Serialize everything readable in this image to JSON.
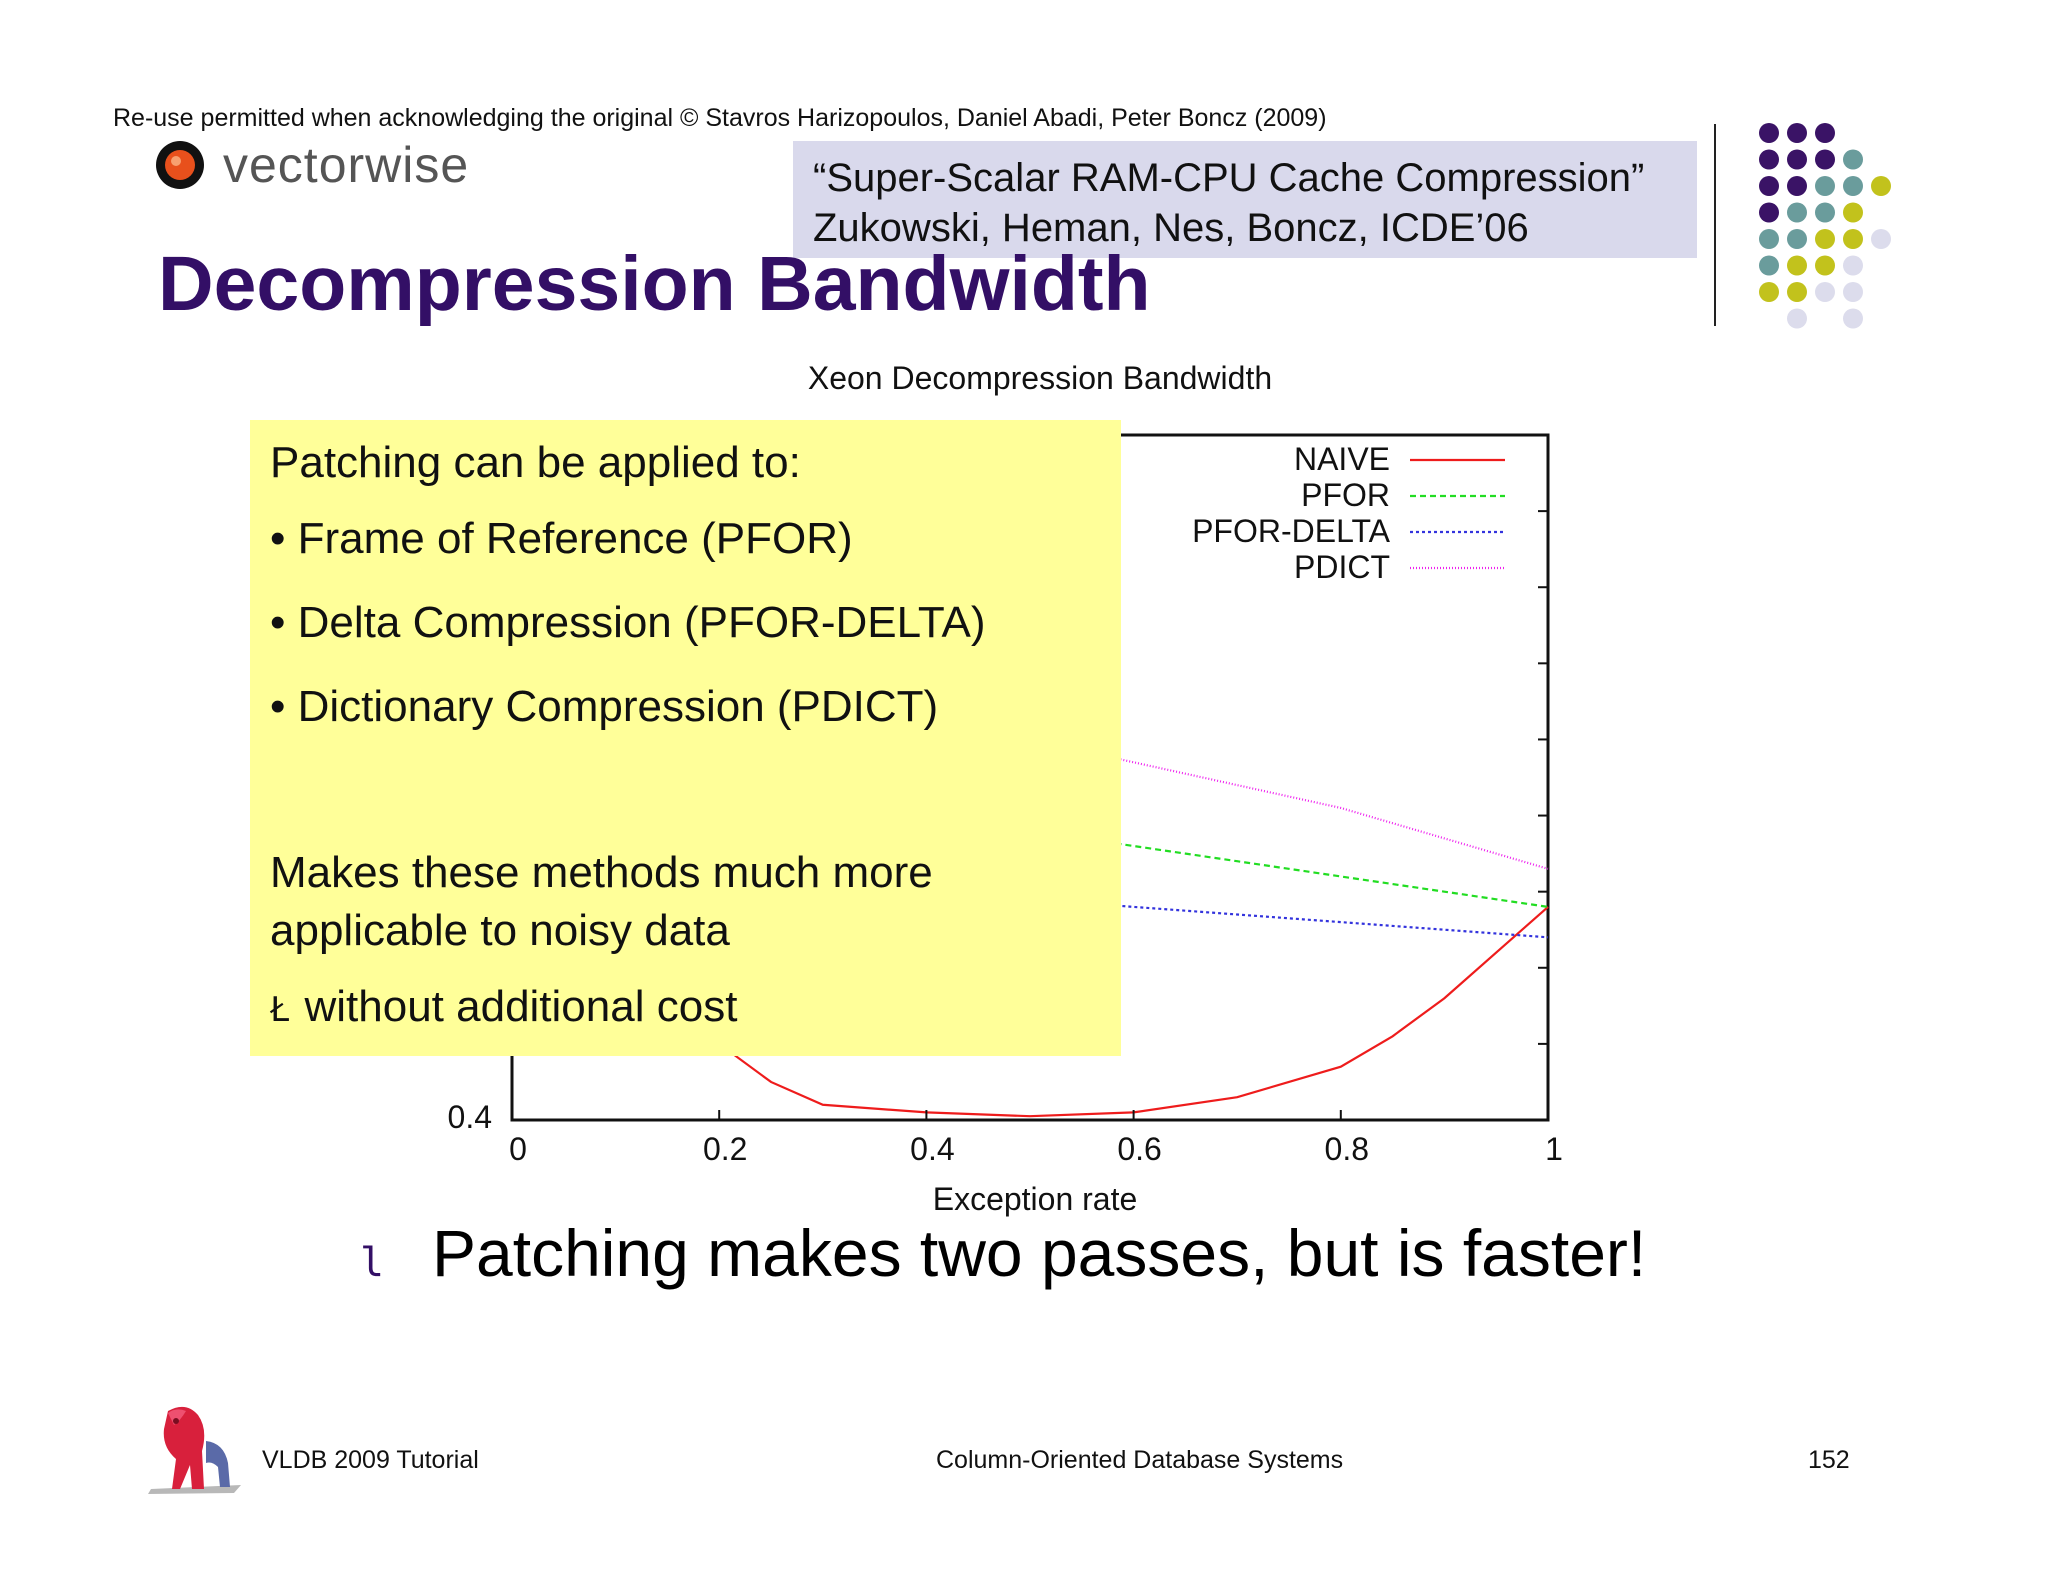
{
  "credit": "Re-use permitted when acknowledging the original © Stavros Harizopoulos, Daniel Abadi, Peter Boncz (2009)",
  "logo": {
    "text": "vectorwise",
    "icon": "vectorwise-logo-icon"
  },
  "reference": {
    "line1": "“Super-Scalar RAM-CPU Cache Compression”",
    "line2": "Zukowski, Heman, Nes, Boncz, ICDE’06"
  },
  "slide_title": "Decompression Bandwidth",
  "callout": {
    "heading": "Patching can be applied to:",
    "bullets": [
      "• Frame of Reference (PFOR)",
      "• Delta Compression (PFOR-DELTA)",
      "• Dictionary Compression (PDICT)"
    ],
    "note_line1": "Makes these methods much more",
    "note_line2": "applicable to noisy data",
    "cost_mark": "Ł",
    "cost_text": "without additional cost"
  },
  "main_bullet": {
    "mark": "l",
    "text": "Patching makes two passes, but is faster!"
  },
  "footer": {
    "left": "VLDB 2009 Tutorial",
    "center": "Column-Oriented Database Systems",
    "page": "152"
  },
  "chart_data": {
    "type": "line",
    "title": "Xeon Decompression Bandwidth",
    "xlabel": "Exception rate",
    "ylabel": "",
    "xlim": [
      0,
      1
    ],
    "ylim": [
      0.4,
      1.3
    ],
    "x_ticks": [
      "0",
      "0.2",
      "0.4",
      "0.6",
      "0.8",
      "1"
    ],
    "y_tick_labels": [
      "0.4"
    ],
    "grid": false,
    "legend_position": "top-right",
    "x": [
      0,
      0.1,
      0.2,
      0.25,
      0.3,
      0.4,
      0.5,
      0.6,
      0.7,
      0.8,
      0.85,
      0.9,
      0.95,
      1.0
    ],
    "series": [
      {
        "name": "NAIVE",
        "color": "#ee1c1c",
        "dash": "solid",
        "values": [
          1.3,
          1.0,
          0.5,
          0.45,
          0.42,
          0.41,
          0.405,
          0.41,
          0.43,
          0.47,
          0.51,
          0.56,
          0.62,
          0.68
        ]
      },
      {
        "name": "PFOR",
        "color": "#22dd22",
        "dash": "6,4",
        "values": [
          0.88,
          0.86,
          0.84,
          0.83,
          0.82,
          0.8,
          0.78,
          0.76,
          0.74,
          0.72,
          0.71,
          0.7,
          0.69,
          0.68
        ]
      },
      {
        "name": "PFOR-DELTA",
        "color": "#3333dd",
        "dash": "3,3",
        "values": [
          0.74,
          0.73,
          0.72,
          0.715,
          0.71,
          0.7,
          0.69,
          0.68,
          0.67,
          0.66,
          0.655,
          0.65,
          0.645,
          0.64
        ]
      },
      {
        "name": "PDICT",
        "color": "#ee22ee",
        "dash": "1,2",
        "values": [
          0.98,
          0.97,
          0.96,
          0.955,
          0.95,
          0.93,
          0.9,
          0.87,
          0.84,
          0.81,
          0.79,
          0.77,
          0.75,
          0.73
        ]
      }
    ]
  }
}
